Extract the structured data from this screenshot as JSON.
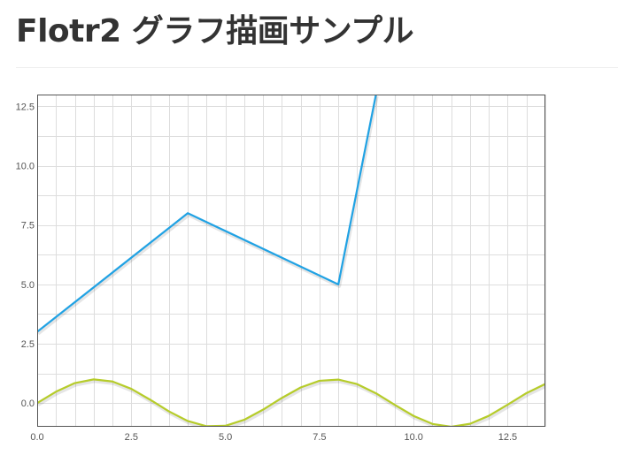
{
  "page": {
    "title": "Flotr2 グラフ描画サンプル"
  },
  "chart_data": {
    "type": "line",
    "title": "",
    "xlabel": "",
    "ylabel": "",
    "xlim": [
      0,
      13.5
    ],
    "ylim": [
      -1.0,
      13.0
    ],
    "grid": true,
    "x_ticks": [
      "0.0",
      "2.5",
      "5.0",
      "7.5",
      "10.0",
      "12.5"
    ],
    "y_ticks": [
      "0.0",
      "2.5",
      "5.0",
      "7.5",
      "10.0",
      "12.5"
    ],
    "series": [
      {
        "color": "#20a2e4",
        "x": [
          0,
          4,
          8,
          9
        ],
        "y": [
          3,
          8,
          5,
          13
        ]
      },
      {
        "color": "#b6cc2a",
        "x": [
          0,
          0.5,
          1,
          1.5,
          2,
          2.5,
          3,
          3.5,
          4,
          4.5,
          5,
          5.5,
          6,
          6.5,
          7,
          7.5,
          8,
          8.5,
          9,
          9.5,
          10,
          10.5,
          11,
          11.5,
          12,
          12.5,
          13,
          13.5
        ],
        "y": [
          0.0,
          0.479,
          0.841,
          0.997,
          0.909,
          0.598,
          0.141,
          -0.351,
          -0.757,
          -0.978,
          -0.959,
          -0.706,
          -0.279,
          0.215,
          0.657,
          0.938,
          0.989,
          0.798,
          0.412,
          -0.075,
          -0.544,
          -0.88,
          -1.0,
          -0.875,
          -0.537,
          -0.066,
          0.42,
          0.804
        ]
      }
    ]
  }
}
